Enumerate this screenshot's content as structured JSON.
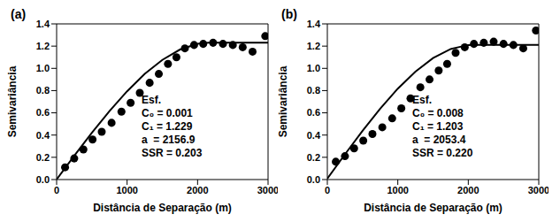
{
  "chart_data": [
    {
      "type": "scatter",
      "title": "(a)",
      "x_label": "Distância de Separação (m)",
      "y_label": "Semivariância",
      "xlim": [
        0,
        3000
      ],
      "xticks": [
        0,
        1000,
        2000,
        3000
      ],
      "ylim": [
        0,
        1.4
      ],
      "yticks": [
        {
          "value": 0,
          "label": "0.0"
        },
        {
          "value": 0.2,
          "label": "0.2"
        },
        {
          "value": 0.4,
          "label": "0.4"
        },
        {
          "value": 0.6,
          "label": "0.6"
        },
        {
          "value": 0.8,
          "label": "0.8"
        },
        {
          "value": 1.0,
          "label": "1.0"
        },
        {
          "value": 1.2,
          "label": "1.2"
        },
        {
          "value": 1.4,
          "label": "1.4"
        }
      ],
      "annotations": [
        "Esf.",
        "C₀ = 0.001",
        "C₁ = 1.229",
        "a  = 2156.9",
        "SSR = 0.203"
      ],
      "series": [
        {
          "type": "scatter",
          "color": "#000000",
          "marker": "circle",
          "x": [
            120,
            250,
            380,
            510,
            640,
            780,
            920,
            1050,
            1180,
            1320,
            1450,
            1580,
            1700,
            1820,
            1950,
            2080,
            2220,
            2360,
            2500,
            2640,
            2780,
            2960
          ],
          "values": [
            0.11,
            0.19,
            0.27,
            0.36,
            0.43,
            0.51,
            0.61,
            0.69,
            0.78,
            0.87,
            0.95,
            1.04,
            1.1,
            1.18,
            1.21,
            1.22,
            1.23,
            1.22,
            1.21,
            1.19,
            1.15,
            1.29
          ]
        },
        {
          "type": "line",
          "color": "#000000",
          "line_style": "solid",
          "x": [
            0,
            250,
            500,
            750,
            1000,
            1250,
            1500,
            1750,
            2000,
            2157,
            3000
          ],
          "values": [
            0.001,
            0.214,
            0.42,
            0.616,
            0.794,
            0.95,
            1.076,
            1.169,
            1.221,
            1.23,
            1.23
          ]
        }
      ]
    },
    {
      "type": "scatter",
      "title": "(b)",
      "x_label": "Distância de Separação (m)",
      "y_label": "Semivariância",
      "xlim": [
        0,
        3000
      ],
      "xticks": [
        0,
        1000,
        2000,
        3000
      ],
      "ylim": [
        0,
        1.4
      ],
      "yticks": [
        {
          "value": 0,
          "label": "0.0"
        },
        {
          "value": 0.2,
          "label": "0.2"
        },
        {
          "value": 0.4,
          "label": "0.4"
        },
        {
          "value": 0.6,
          "label": "0.6"
        },
        {
          "value": 0.8,
          "label": "0.8"
        },
        {
          "value": 1.0,
          "label": "1.0"
        },
        {
          "value": 1.2,
          "label": "1.2"
        },
        {
          "value": 1.4,
          "label": "1.4"
        }
      ],
      "annotations": [
        "Esf.",
        "C₀ = 0.008",
        "C₁ = 1.203",
        "a  = 2053.4",
        "SSR = 0.220"
      ],
      "series": [
        {
          "type": "scatter",
          "color": "#000000",
          "marker": "circle",
          "x": [
            120,
            250,
            380,
            510,
            640,
            780,
            920,
            1050,
            1180,
            1320,
            1450,
            1580,
            1700,
            1820,
            1950,
            2080,
            2220,
            2360,
            2500,
            2640,
            2780,
            2960
          ],
          "values": [
            0.16,
            0.21,
            0.28,
            0.35,
            0.41,
            0.47,
            0.55,
            0.64,
            0.73,
            0.83,
            0.9,
            0.98,
            1.04,
            1.14,
            1.19,
            1.22,
            1.23,
            1.24,
            1.22,
            1.21,
            1.18,
            1.34
          ]
        },
        {
          "type": "line",
          "color": "#000000",
          "line_style": "solid",
          "x": [
            0,
            250,
            500,
            750,
            1000,
            1250,
            1500,
            1750,
            2000,
            2053,
            3000
          ],
          "values": [
            0.008,
            0.227,
            0.439,
            0.638,
            0.818,
            0.971,
            1.092,
            1.174,
            1.21,
            1.211,
            1.211
          ]
        }
      ]
    }
  ]
}
